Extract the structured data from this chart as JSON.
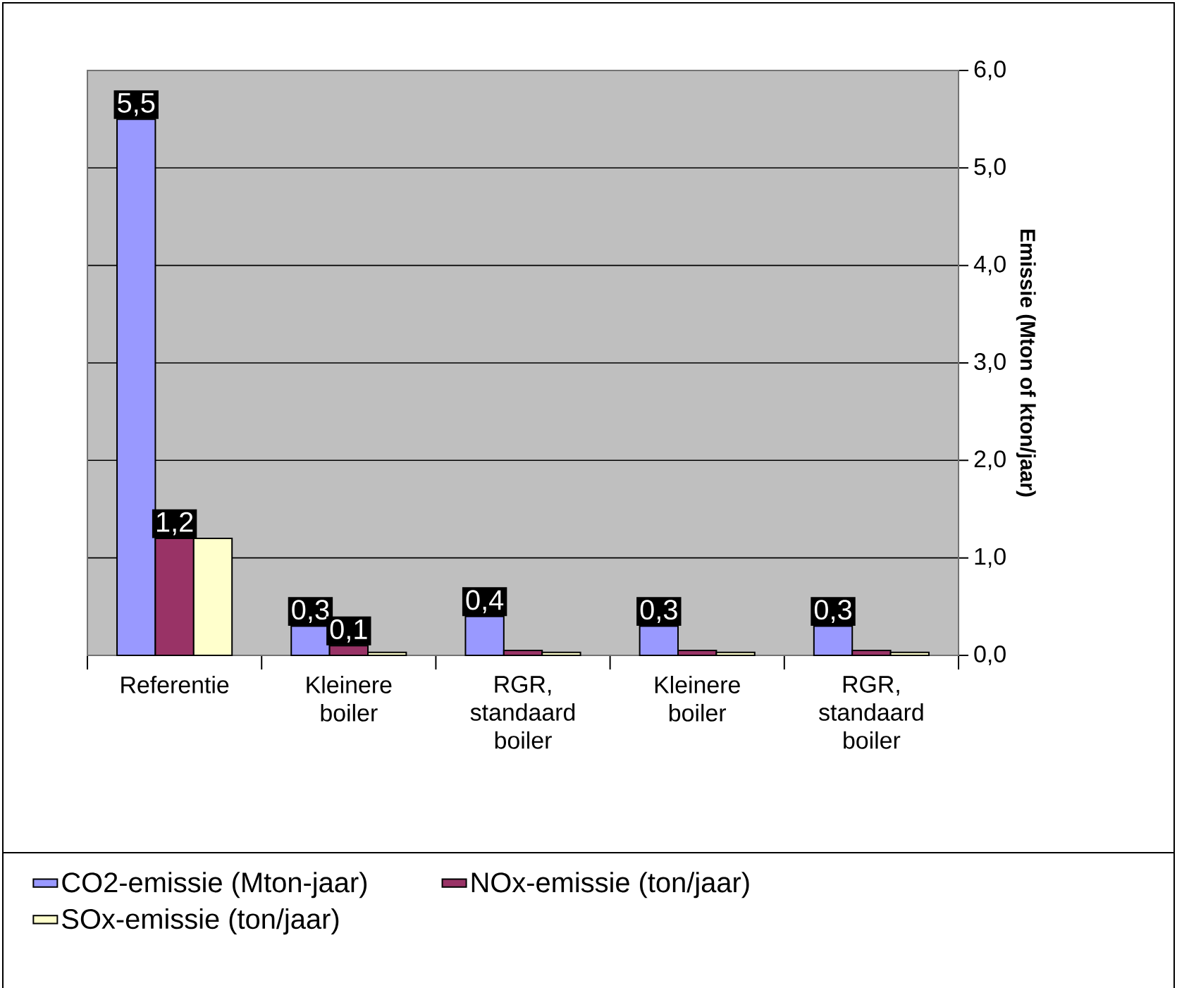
{
  "chart_data": {
    "type": "bar",
    "ylabel": "Emissie (Mton of kton/jaar)",
    "categories": [
      "Referentie",
      "Kleinere boiler",
      "RGR, standaard boiler",
      "Kleinere boiler",
      "RGR, standaard boiler"
    ],
    "series": [
      {
        "name": "CO2-emissie (Mton-jaar)",
        "color": "#9999ff",
        "values": [
          5.5,
          0.3,
          0.4,
          0.3,
          0.3
        ],
        "value_labels": [
          "5,5",
          "0,3",
          "0,4",
          "0,3",
          "0,3"
        ]
      },
      {
        "name": "NOx-emissie (ton/jaar)",
        "color": "#993366",
        "values": [
          1.2,
          0.1,
          0.05,
          0.05,
          0.05
        ],
        "value_labels": [
          "1,2",
          "0,1",
          null,
          null,
          null
        ]
      },
      {
        "name": "SOx-emissie (ton/jaar)",
        "color": "#ffffcc",
        "values": [
          1.2,
          0.03,
          0.03,
          0.03,
          0.03
        ]
      }
    ],
    "ylim": [
      0,
      6
    ],
    "yticks": [
      {
        "value": 0,
        "label": "0,0"
      },
      {
        "value": 1,
        "label": "1,0"
      },
      {
        "value": 2,
        "label": "2,0"
      },
      {
        "value": 3,
        "label": "3,0"
      },
      {
        "value": 4,
        "label": "4,0"
      },
      {
        "value": 5,
        "label": "5,0"
      },
      {
        "value": 6,
        "label": "6,0"
      }
    ],
    "grid": "y",
    "legend": "bottom"
  }
}
